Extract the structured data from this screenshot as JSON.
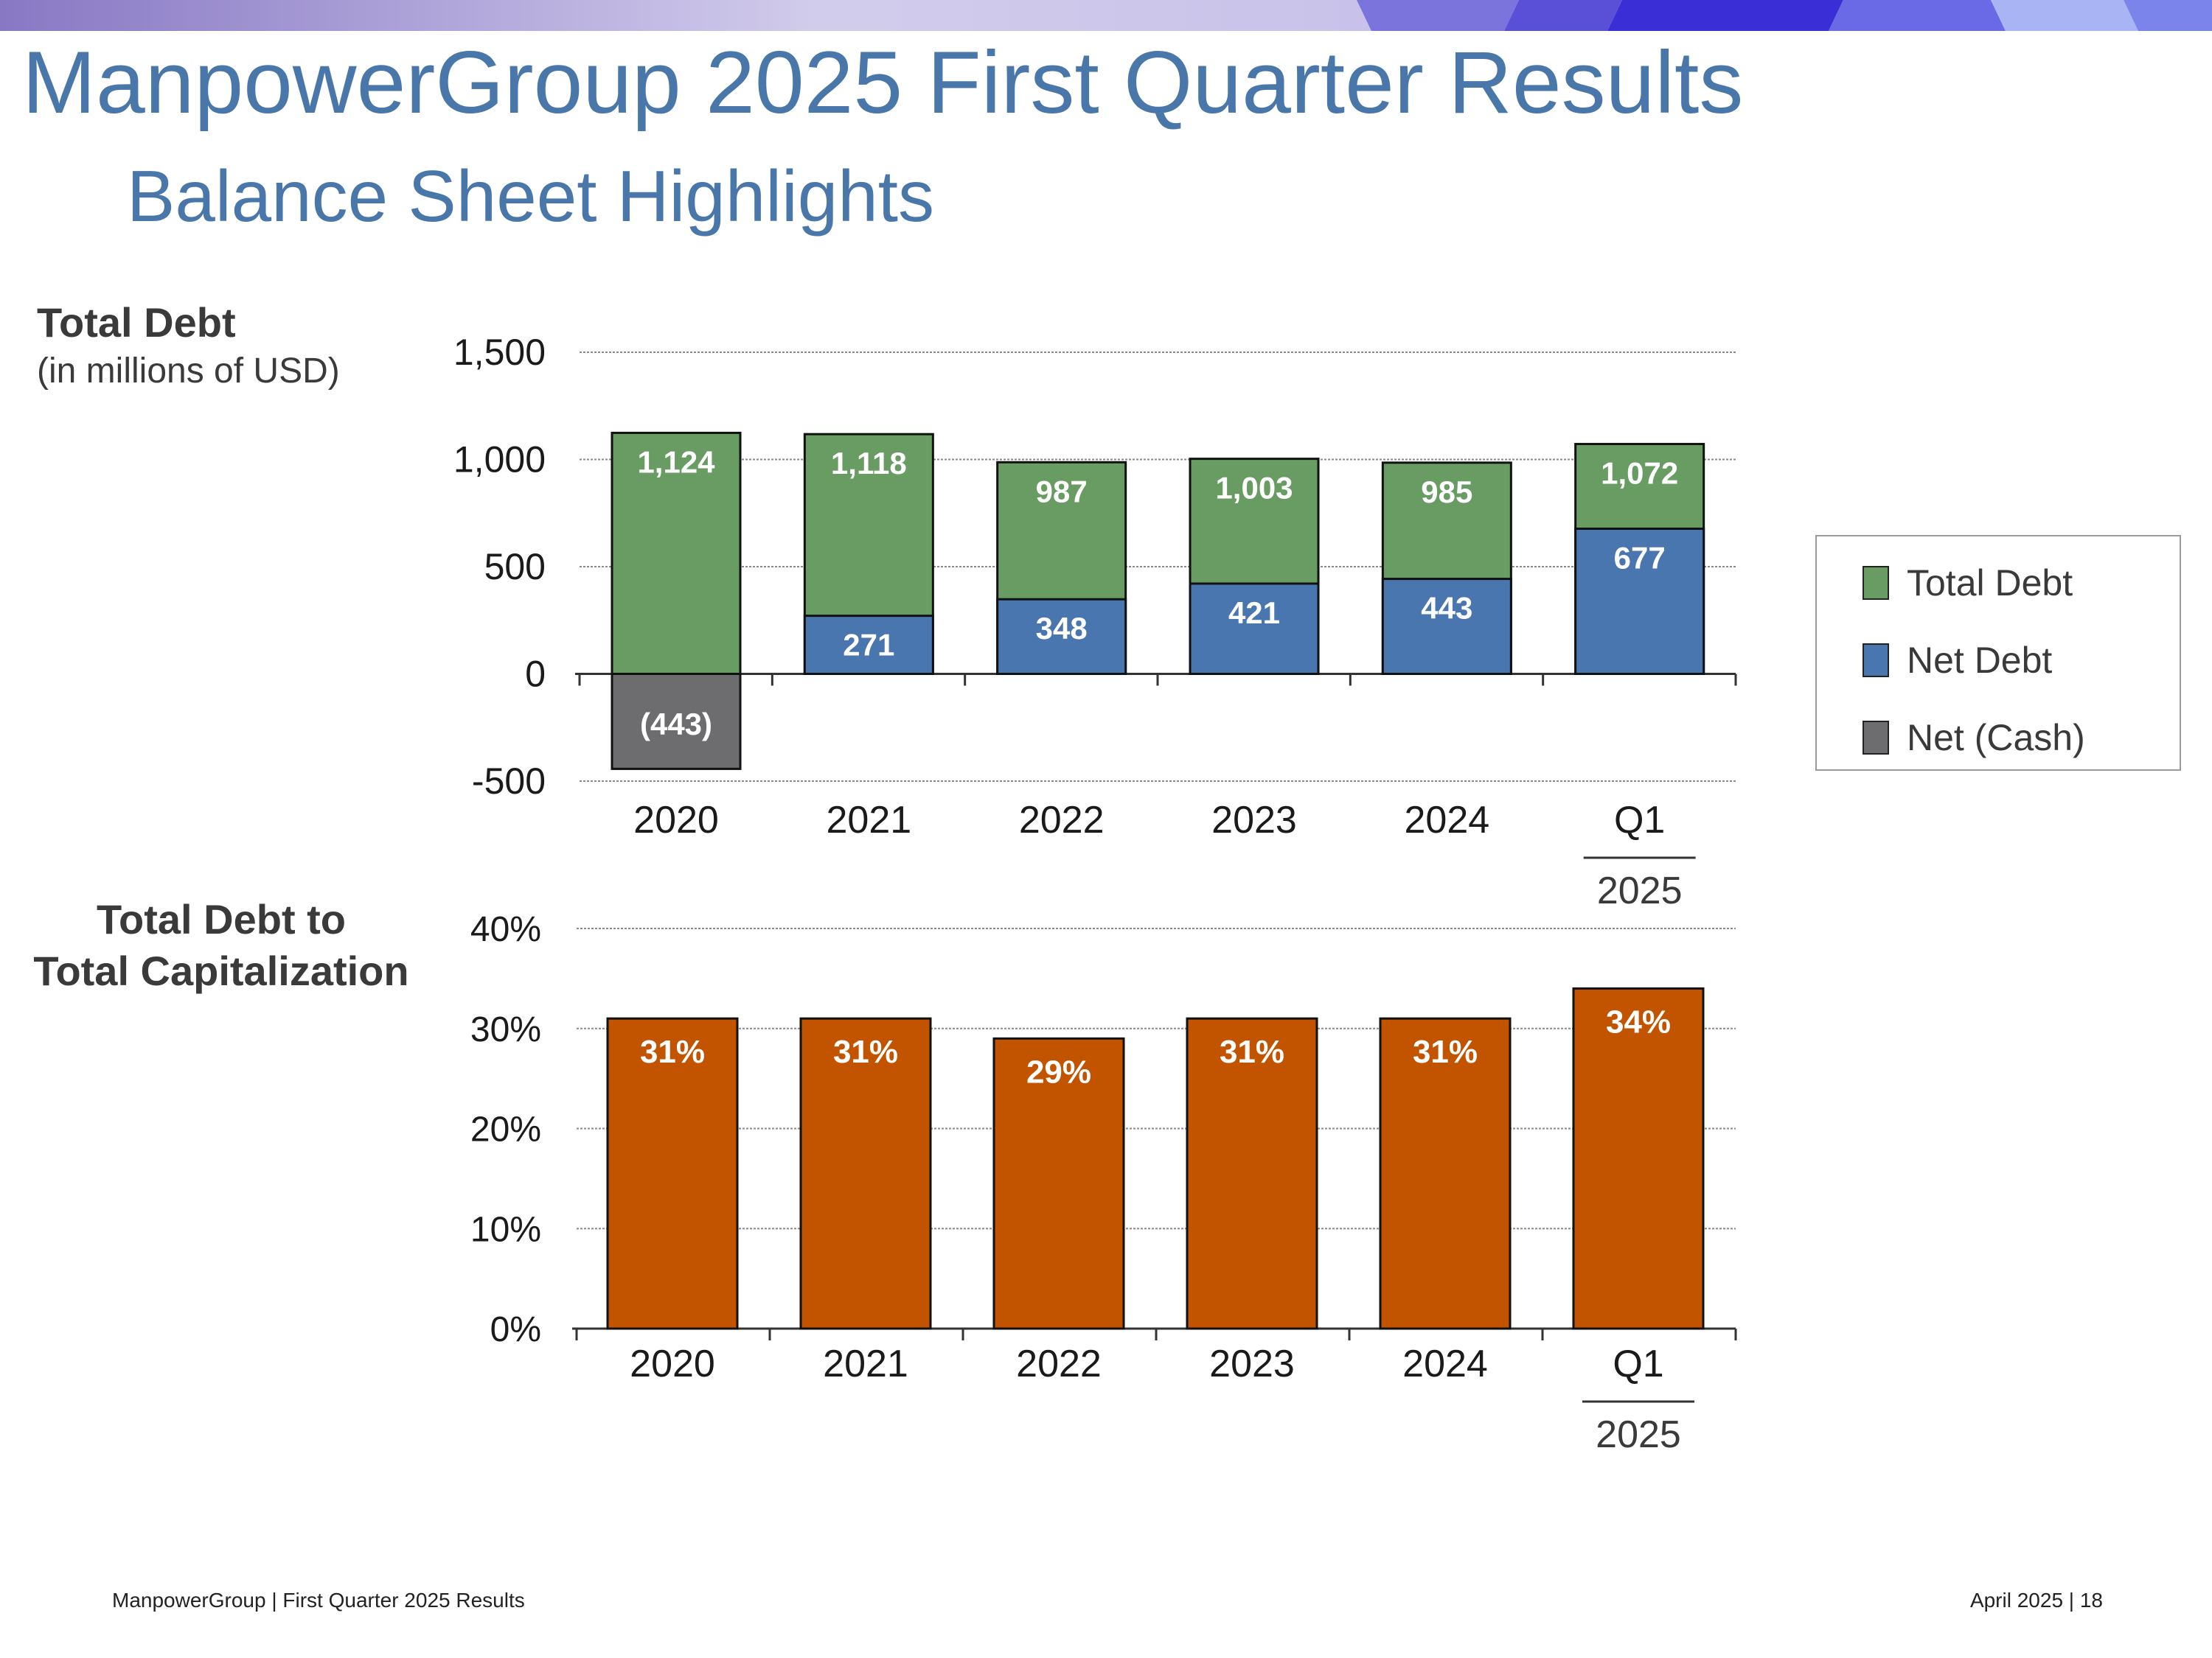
{
  "header": {
    "title": "ManpowerGroup 2025 First Quarter Results",
    "subtitle": "Balance Sheet Highlights"
  },
  "debt_section": {
    "heading": "Total Debt",
    "unit": "(in millions of USD)"
  },
  "cap_section": {
    "heading_line1": "Total Debt to",
    "heading_line2": "Total Capitalization"
  },
  "legend": {
    "items": [
      {
        "label": "Total Debt",
        "color": "#699c63"
      },
      {
        "label": "Net Debt",
        "color": "#4a76b0"
      },
      {
        "label": "Net (Cash)",
        "color": "#6d6d6f"
      }
    ]
  },
  "footer": {
    "left": "ManpowerGroup  |  First Quarter 2025 Results",
    "right": "April 2025    |    18"
  },
  "chart_data": [
    {
      "type": "bar",
      "title": "Total Debt",
      "ylabel": "(in millions of USD)",
      "categories": [
        "2020",
        "2021",
        "2022",
        "2023",
        "2024",
        "Q1 2025"
      ],
      "category_labels": [
        [
          "2020"
        ],
        [
          "2021"
        ],
        [
          "2022"
        ],
        [
          "2023"
        ],
        [
          "2024"
        ],
        [
          "Q1",
          "2025"
        ]
      ],
      "ylim": [
        -500,
        1500
      ],
      "ticks": [
        1500,
        1000,
        500,
        0,
        -500
      ],
      "tick_labels": [
        "1,500",
        "1,000",
        "500",
        "0",
        "-500"
      ],
      "grid": true,
      "series": [
        {
          "name": "Total Debt",
          "color": "#699c63",
          "values": [
            1124,
            1118,
            987,
            1003,
            985,
            1072
          ],
          "labels": [
            "1,124",
            "1,118",
            "987",
            "1,003",
            "985",
            "1,072"
          ]
        },
        {
          "name": "Net Debt",
          "color": "#4a76b0",
          "values": [
            null,
            271,
            348,
            421,
            443,
            677
          ],
          "labels": [
            "",
            "271",
            "348",
            "421",
            "443",
            "677"
          ]
        },
        {
          "name": "Net (Cash)",
          "color": "#6d6d6f",
          "values": [
            -443,
            null,
            null,
            null,
            null,
            null
          ],
          "labels": [
            "(443)",
            "",
            "",
            "",
            "",
            ""
          ]
        }
      ]
    },
    {
      "type": "bar",
      "title": "Total Debt to Total Capitalization",
      "categories": [
        "2020",
        "2021",
        "2022",
        "2023",
        "2024",
        "Q1 2025"
      ],
      "category_labels": [
        [
          "2020"
        ],
        [
          "2021"
        ],
        [
          "2022"
        ],
        [
          "2023"
        ],
        [
          "2024"
        ],
        [
          "Q1",
          "2025"
        ]
      ],
      "ylim": [
        0,
        40
      ],
      "ticks": [
        40,
        30,
        20,
        10,
        0
      ],
      "tick_labels": [
        "40%",
        "30%",
        "20%",
        "10%",
        "0%"
      ],
      "grid": true,
      "series": [
        {
          "name": "Total Debt to Total Capitalization",
          "color": "#c25400",
          "values": [
            31,
            31,
            29,
            31,
            31,
            34
          ],
          "labels": [
            "31%",
            "31%",
            "29%",
            "31%",
            "31%",
            "34%"
          ]
        }
      ]
    }
  ]
}
